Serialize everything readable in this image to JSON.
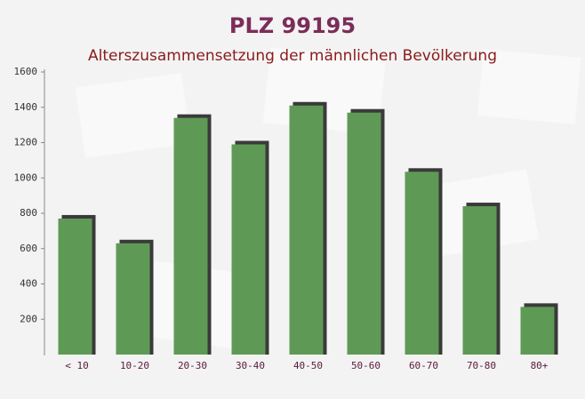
{
  "chart_data": {
    "type": "bar",
    "title": "PLZ 99195",
    "subtitle": "Alterszusammensetzung der männlichen Bevölkerung",
    "categories": [
      "< 10",
      "10-20",
      "20-30",
      "30-40",
      "40-50",
      "50-60",
      "60-70",
      "70-80",
      "80+"
    ],
    "values": [
      770,
      630,
      1340,
      1190,
      1410,
      1370,
      1035,
      840,
      270
    ],
    "color": "#5e9a55",
    "ylim": [
      0,
      1600
    ],
    "yticks": [
      200,
      400,
      600,
      800,
      1000,
      1200,
      1400,
      1600
    ],
    "grid": false
  }
}
